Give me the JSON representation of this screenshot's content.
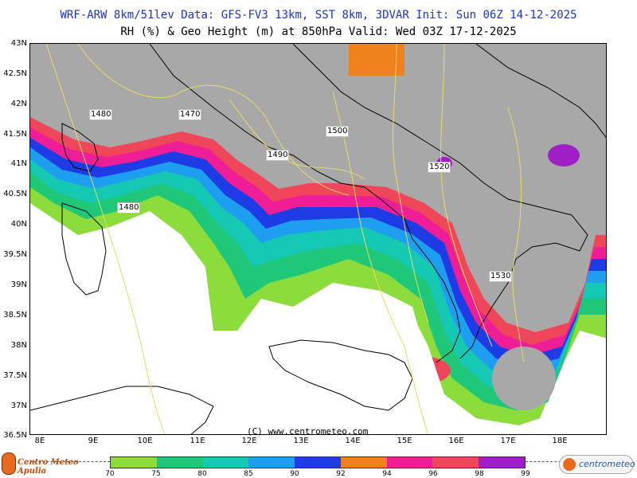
{
  "header": {
    "line1": "WRF-ARW 8km/51lev  Data: GFS-FV3 13km, SST 8km, 3DVAR  Init: Sun 06Z 14-12-2025",
    "line2": "RH (%) & Geo Height (m) at 850hPa  Valid: Wed 03Z 17-12-2025"
  },
  "axes": {
    "lat_labels": [
      "43N",
      "42.5N",
      "42N",
      "41.5N",
      "41N",
      "40.5N",
      "40N",
      "39.5N",
      "39N",
      "38.5N",
      "38N",
      "37.5N",
      "37N",
      "36.5N"
    ],
    "lon_labels": [
      "8E",
      "9E",
      "10E",
      "11E",
      "12E",
      "13E",
      "14E",
      "15E",
      "16E",
      "17E",
      "18E"
    ]
  },
  "geopotential_contours": [
    {
      "label": "1480",
      "id": "c1480a"
    },
    {
      "label": "1470",
      "id": "c1470"
    },
    {
      "label": "1490",
      "id": "c1490"
    },
    {
      "label": "1500",
      "id": "c1500"
    },
    {
      "label": "1520",
      "id": "c1520"
    },
    {
      "label": "1480",
      "id": "c1480b"
    },
    {
      "label": "1530",
      "id": "c1530"
    }
  ],
  "watermark": "(C) www.centrometeo.com",
  "legend": {
    "values": [
      "70",
      "75",
      "80",
      "85",
      "90",
      "92",
      "94",
      "96",
      "98",
      "99"
    ],
    "colors": [
      "#8cdc3c",
      "#1ec878",
      "#14c8b4",
      "#1e9ef0",
      "#1e3ce6",
      "#f0821e",
      "#f01e96",
      "#f0465a",
      "#a01ec8"
    ]
  },
  "logos": {
    "left": "Centro Meteo Apulia",
    "right": "centrometeo"
  },
  "colors": {
    "land_gray": "#a8a8a8",
    "coast": "#000000",
    "geo_contour": "#e6dc64",
    "sea_white": "#ffffff"
  }
}
